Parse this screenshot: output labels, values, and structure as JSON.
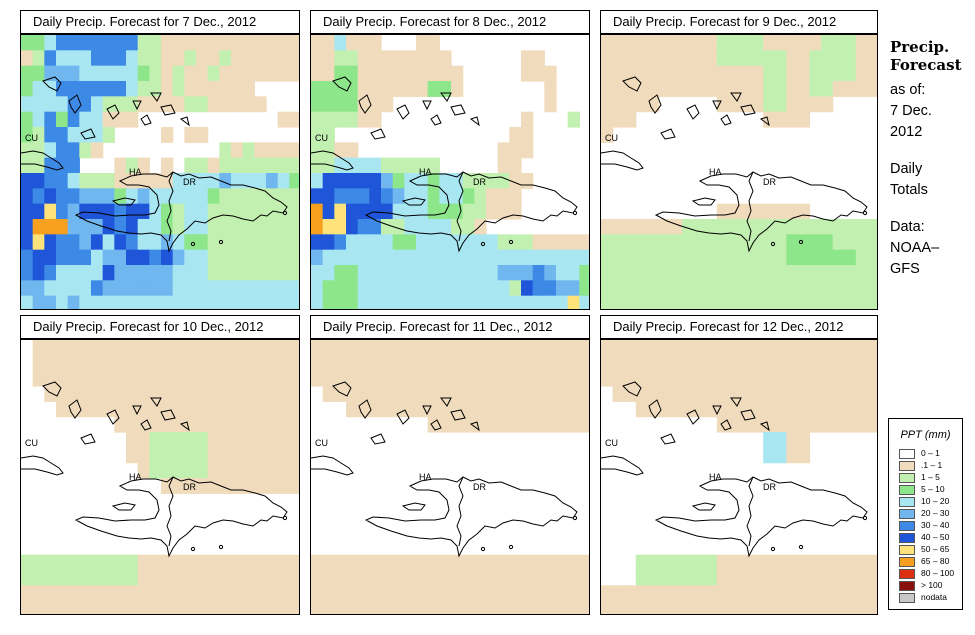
{
  "panels": [
    {
      "title": "Daily Precip. Forecast for  7 Dec., 2012"
    },
    {
      "title": "Daily Precip. Forecast for  8 Dec., 2012"
    },
    {
      "title": "Daily Precip. Forecast for  9 Dec., 2012"
    },
    {
      "title": "Daily Precip. Forecast for  10 Dec., 2012"
    },
    {
      "title": "Daily Precip. Forecast for  11 Dec., 2012"
    },
    {
      "title": "Daily Precip. Forecast for  12 Dec., 2012"
    }
  ],
  "map_labels": {
    "cuba": "CU",
    "haiti": "HA",
    "dominican_republic": "DR"
  },
  "sidebar": {
    "title_line1": "Precip.",
    "title_line2": "Forecast",
    "asof_line1": "as of:",
    "asof_line2": "7 Dec.",
    "asof_line3": "2012",
    "totals_line1": "Daily",
    "totals_line2": "Totals",
    "data_line1": "Data:",
    "data_line2": "NOAA–",
    "data_line3": "GFS"
  },
  "legend": {
    "title": "PPT (mm)",
    "items": [
      {
        "label": "0 – 1",
        "color": "#ffffff"
      },
      {
        "label": ".1 – 1",
        "color": "#f0dcbc"
      },
      {
        "label": "1 – 5",
        "color": "#c2f0b0"
      },
      {
        "label": "5 – 10",
        "color": "#8ee68a"
      },
      {
        "label": "10 – 20",
        "color": "#a8e6f2"
      },
      {
        "label": "20 – 30",
        "color": "#6fb7ee"
      },
      {
        "label": "30 – 40",
        "color": "#3d8ae6"
      },
      {
        "label": "40 – 50",
        "color": "#1f55d8"
      },
      {
        "label": "50 – 65",
        "color": "#fde37a"
      },
      {
        "label": "65 – 80",
        "color": "#f7a020"
      },
      {
        "label": "80 – 100",
        "color": "#dd3010"
      },
      {
        "label": "> 100",
        "color": "#8a1010"
      },
      {
        "label": "nodata",
        "color": "#c8c8c8"
      }
    ]
  },
  "grids": [
    "334666666622111111111111|126444666422112112111111|335554444432121121111111|344666666422121111110000|444466422211112211111000|346364411100000000000011|326644420000101100000000|224662100000000002121111|226660001210102212222222|776642221111144445444543|767665553454444432222222|778657776774324422222222|799955576744324422222222|787665747644543322222222|677666455776754422222222|676444475555544422222222|554444655555544444444444|455454444444444444444444",
    "114111000110000000000000|112211111111000000110000|113311111111100000111000|333311111133100000001000|333311100000000000001000|222211000000000000100020|220000000000000001100000|221100000000000011100000|224444222220000011000000|477777534434422221100000|776667654434432111000000|978777744433322111000000|988766224444221000000000|776444433444444422211111|544444444444444444444444|443344444444444455565443|433344444444444442766553|433344444444444444444484",
    "111111111122221111122211|111111111122222211222211|111111111111112211222211|111111111111112211221111|111110000011112211110000|111000000000001111000000|100000000000000000000000|000000000000000000000000|000000000000000000000000|000000000000000000000000|000000000000000000000000|000000000011111111000000|111111122222222222222222|222222222222222233332222|222222222222222233333322|222222222222222222222222|222222222222222222222222|222222222222222222222222",
    "011111111111111111111111|011111111111111111111111|011111111111111111111111|001111111111111111111111|000111111111111111111111|000000001111111111111111|000000000112222211111111|000000000112222211111111|000000000012222211111111|000000000000111111111111|000000000000000000000000|000000000000000000000000|000000000000000000000000|000000000000000000000000|222222222211111111111111|222222222211111111111111|111111111111111111111111|111111111111111111111111",
    "111111111111111111111111|111111111111111111111111|111111111111111111111111|011111111111111111111111|000111111111111111111111|000000000011111111111111|000000000000000000000000|000000000000000000000000|000000000000000000000000|000000000000000000000000|000000000000000000000000|000000000000000000000000|000000000000000000000000|000000000000000000000000|111111111111111111111111|111111111111111111111111|111111111111111111111111|111111111111111111111111",
    "111111111111111111111111|111111111111111111111111|111111111111111111111111|011111111111111111111111|000111111111111111111111|000000000011111111111111|000000000000004411000000|000000000000004411000000|000000000000000000000000|000000000000000000000000|000000000000000000000000|000000000000000000000000|000000000000000000000000|000000000000000000000000|000222222211111111111111|000222222211111111111111|111111111111111111111111|111111111111111111111111"
  ]
}
